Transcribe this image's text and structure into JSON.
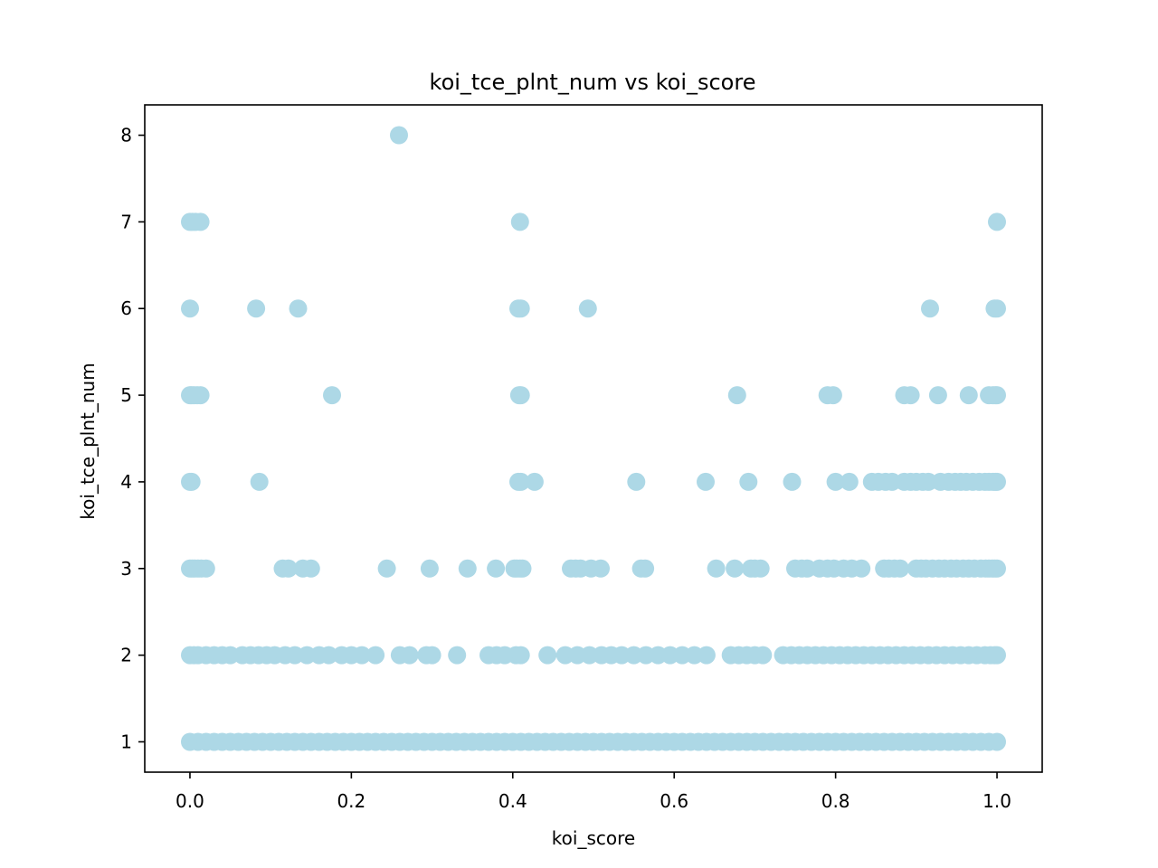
{
  "chart_data": {
    "type": "scatter",
    "title": "koi_tce_plnt_num vs koi_score",
    "xlabel": "koi_score",
    "ylabel": "koi_tce_plnt_num",
    "xlim": [
      -0.056,
      1.056
    ],
    "ylim": [
      0.65,
      8.35
    ],
    "xticks": [
      "0.0",
      "0.2",
      "0.4",
      "0.6",
      "0.8",
      "1.0"
    ],
    "yticks": [
      "1",
      "2",
      "3",
      "4",
      "5",
      "6",
      "7",
      "8"
    ],
    "grid": false,
    "legend": "none",
    "marker_color": "#add8e6",
    "series": [
      {
        "points": [
          [
            0.259,
            8
          ],
          [
            0.0,
            7
          ],
          [
            0.003,
            7
          ],
          [
            0.007,
            7
          ],
          [
            0.013,
            7
          ],
          [
            0.409,
            7
          ],
          [
            1.0,
            7
          ],
          [
            0.0,
            6
          ],
          [
            0.082,
            6
          ],
          [
            0.134,
            6
          ],
          [
            0.407,
            6
          ],
          [
            0.41,
            6
          ],
          [
            0.493,
            6
          ],
          [
            0.917,
            6
          ],
          [
            0.997,
            6
          ],
          [
            1.0,
            6
          ],
          [
            0.0,
            5
          ],
          [
            0.002,
            5
          ],
          [
            0.005,
            5
          ],
          [
            0.009,
            5
          ],
          [
            0.013,
            5
          ],
          [
            0.176,
            5
          ],
          [
            0.408,
            5
          ],
          [
            0.41,
            5
          ],
          [
            0.678,
            5
          ],
          [
            0.79,
            5
          ],
          [
            0.797,
            5
          ],
          [
            0.885,
            5
          ],
          [
            0.893,
            5
          ],
          [
            0.927,
            5
          ],
          [
            0.965,
            5
          ],
          [
            0.99,
            5
          ],
          [
            0.995,
            5
          ],
          [
            0.998,
            5
          ],
          [
            1.0,
            5
          ],
          [
            0.0,
            4
          ],
          [
            0.002,
            4
          ],
          [
            0.086,
            4
          ],
          [
            0.407,
            4
          ],
          [
            0.41,
            4
          ],
          [
            0.427,
            4
          ],
          [
            0.553,
            4
          ],
          [
            0.639,
            4
          ],
          [
            0.692,
            4
          ],
          [
            0.746,
            4
          ],
          [
            0.8,
            4
          ],
          [
            0.817,
            4
          ],
          [
            0.845,
            4
          ],
          [
            0.853,
            4
          ],
          [
            0.862,
            4
          ],
          [
            0.87,
            4
          ],
          [
            0.885,
            4
          ],
          [
            0.893,
            4
          ],
          [
            0.9,
            4
          ],
          [
            0.908,
            4
          ],
          [
            0.915,
            4
          ],
          [
            0.93,
            4
          ],
          [
            0.94,
            4
          ],
          [
            0.948,
            4
          ],
          [
            0.955,
            4
          ],
          [
            0.962,
            4
          ],
          [
            0.97,
            4
          ],
          [
            0.978,
            4
          ],
          [
            0.985,
            4
          ],
          [
            0.99,
            4
          ],
          [
            0.995,
            4
          ],
          [
            0.998,
            4
          ],
          [
            1.0,
            4
          ],
          [
            0.0,
            3
          ],
          [
            0.003,
            3
          ],
          [
            0.006,
            3
          ],
          [
            0.01,
            3
          ],
          [
            0.014,
            3
          ],
          [
            0.02,
            3
          ],
          [
            0.115,
            3
          ],
          [
            0.122,
            3
          ],
          [
            0.14,
            3
          ],
          [
            0.15,
            3
          ],
          [
            0.244,
            3
          ],
          [
            0.297,
            3
          ],
          [
            0.344,
            3
          ],
          [
            0.379,
            3
          ],
          [
            0.402,
            3
          ],
          [
            0.405,
            3
          ],
          [
            0.409,
            3
          ],
          [
            0.412,
            3
          ],
          [
            0.472,
            3
          ],
          [
            0.478,
            3
          ],
          [
            0.484,
            3
          ],
          [
            0.497,
            3
          ],
          [
            0.509,
            3
          ],
          [
            0.559,
            3
          ],
          [
            0.564,
            3
          ],
          [
            0.652,
            3
          ],
          [
            0.675,
            3
          ],
          [
            0.695,
            3
          ],
          [
            0.7,
            3
          ],
          [
            0.707,
            3
          ],
          [
            0.75,
            3
          ],
          [
            0.758,
            3
          ],
          [
            0.765,
            3
          ],
          [
            0.78,
            3
          ],
          [
            0.79,
            3
          ],
          [
            0.798,
            3
          ],
          [
            0.81,
            3
          ],
          [
            0.82,
            3
          ],
          [
            0.832,
            3
          ],
          [
            0.86,
            3
          ],
          [
            0.866,
            3
          ],
          [
            0.873,
            3
          ],
          [
            0.88,
            3
          ],
          [
            0.9,
            3
          ],
          [
            0.906,
            3
          ],
          [
            0.912,
            3
          ],
          [
            0.92,
            3
          ],
          [
            0.928,
            3
          ],
          [
            0.935,
            3
          ],
          [
            0.943,
            3
          ],
          [
            0.95,
            3
          ],
          [
            0.958,
            3
          ],
          [
            0.965,
            3
          ],
          [
            0.972,
            3
          ],
          [
            0.98,
            3
          ],
          [
            0.986,
            3
          ],
          [
            0.99,
            3
          ],
          [
            0.994,
            3
          ],
          [
            0.997,
            3
          ],
          [
            1.0,
            3
          ],
          [
            0.0,
            2
          ],
          [
            0.005,
            2
          ],
          [
            0.01,
            2
          ],
          [
            0.02,
            2
          ],
          [
            0.03,
            2
          ],
          [
            0.04,
            2
          ],
          [
            0.05,
            2
          ],
          [
            0.065,
            2
          ],
          [
            0.075,
            2
          ],
          [
            0.085,
            2
          ],
          [
            0.095,
            2
          ],
          [
            0.105,
            2
          ],
          [
            0.118,
            2
          ],
          [
            0.13,
            2
          ],
          [
            0.145,
            2
          ],
          [
            0.16,
            2
          ],
          [
            0.172,
            2
          ],
          [
            0.188,
            2
          ],
          [
            0.2,
            2
          ],
          [
            0.213,
            2
          ],
          [
            0.23,
            2
          ],
          [
            0.26,
            2
          ],
          [
            0.272,
            2
          ],
          [
            0.293,
            2
          ],
          [
            0.3,
            2
          ],
          [
            0.331,
            2
          ],
          [
            0.37,
            2
          ],
          [
            0.38,
            2
          ],
          [
            0.39,
            2
          ],
          [
            0.404,
            2
          ],
          [
            0.41,
            2
          ],
          [
            0.443,
            2
          ],
          [
            0.465,
            2
          ],
          [
            0.48,
            2
          ],
          [
            0.495,
            2
          ],
          [
            0.51,
            2
          ],
          [
            0.522,
            2
          ],
          [
            0.535,
            2
          ],
          [
            0.55,
            2
          ],
          [
            0.565,
            2
          ],
          [
            0.58,
            2
          ],
          [
            0.595,
            2
          ],
          [
            0.61,
            2
          ],
          [
            0.625,
            2
          ],
          [
            0.64,
            2
          ],
          [
            0.67,
            2
          ],
          [
            0.68,
            2
          ],
          [
            0.69,
            2
          ],
          [
            0.7,
            2
          ],
          [
            0.71,
            2
          ],
          [
            0.735,
            2
          ],
          [
            0.745,
            2
          ],
          [
            0.755,
            2
          ],
          [
            0.765,
            2
          ],
          [
            0.775,
            2
          ],
          [
            0.785,
            2
          ],
          [
            0.795,
            2
          ],
          [
            0.805,
            2
          ],
          [
            0.815,
            2
          ],
          [
            0.825,
            2
          ],
          [
            0.835,
            2
          ],
          [
            0.845,
            2
          ],
          [
            0.855,
            2
          ],
          [
            0.865,
            2
          ],
          [
            0.875,
            2
          ],
          [
            0.885,
            2
          ],
          [
            0.895,
            2
          ],
          [
            0.905,
            2
          ],
          [
            0.915,
            2
          ],
          [
            0.925,
            2
          ],
          [
            0.935,
            2
          ],
          [
            0.945,
            2
          ],
          [
            0.955,
            2
          ],
          [
            0.965,
            2
          ],
          [
            0.975,
            2
          ],
          [
            0.985,
            2
          ],
          [
            0.992,
            2
          ],
          [
            0.997,
            2
          ],
          [
            1.0,
            2
          ],
          [
            0.0,
            1
          ],
          [
            0.01,
            1
          ],
          [
            0.02,
            1
          ],
          [
            0.03,
            1
          ],
          [
            0.04,
            1
          ],
          [
            0.05,
            1
          ],
          [
            0.06,
            1
          ],
          [
            0.07,
            1
          ],
          [
            0.08,
            1
          ],
          [
            0.09,
            1
          ],
          [
            0.1,
            1
          ],
          [
            0.11,
            1
          ],
          [
            0.12,
            1
          ],
          [
            0.13,
            1
          ],
          [
            0.14,
            1
          ],
          [
            0.15,
            1
          ],
          [
            0.16,
            1
          ],
          [
            0.17,
            1
          ],
          [
            0.18,
            1
          ],
          [
            0.19,
            1
          ],
          [
            0.2,
            1
          ],
          [
            0.21,
            1
          ],
          [
            0.22,
            1
          ],
          [
            0.23,
            1
          ],
          [
            0.24,
            1
          ],
          [
            0.25,
            1
          ],
          [
            0.26,
            1
          ],
          [
            0.27,
            1
          ],
          [
            0.28,
            1
          ],
          [
            0.29,
            1
          ],
          [
            0.3,
            1
          ],
          [
            0.31,
            1
          ],
          [
            0.32,
            1
          ],
          [
            0.33,
            1
          ],
          [
            0.34,
            1
          ],
          [
            0.35,
            1
          ],
          [
            0.36,
            1
          ],
          [
            0.37,
            1
          ],
          [
            0.38,
            1
          ],
          [
            0.39,
            1
          ],
          [
            0.4,
            1
          ],
          [
            0.41,
            1
          ],
          [
            0.42,
            1
          ],
          [
            0.43,
            1
          ],
          [
            0.44,
            1
          ],
          [
            0.45,
            1
          ],
          [
            0.46,
            1
          ],
          [
            0.47,
            1
          ],
          [
            0.48,
            1
          ],
          [
            0.49,
            1
          ],
          [
            0.5,
            1
          ],
          [
            0.51,
            1
          ],
          [
            0.52,
            1
          ],
          [
            0.53,
            1
          ],
          [
            0.54,
            1
          ],
          [
            0.55,
            1
          ],
          [
            0.56,
            1
          ],
          [
            0.57,
            1
          ],
          [
            0.58,
            1
          ],
          [
            0.59,
            1
          ],
          [
            0.6,
            1
          ],
          [
            0.61,
            1
          ],
          [
            0.62,
            1
          ],
          [
            0.63,
            1
          ],
          [
            0.64,
            1
          ],
          [
            0.65,
            1
          ],
          [
            0.66,
            1
          ],
          [
            0.67,
            1
          ],
          [
            0.68,
            1
          ],
          [
            0.69,
            1
          ],
          [
            0.7,
            1
          ],
          [
            0.71,
            1
          ],
          [
            0.72,
            1
          ],
          [
            0.73,
            1
          ],
          [
            0.74,
            1
          ],
          [
            0.75,
            1
          ],
          [
            0.76,
            1
          ],
          [
            0.77,
            1
          ],
          [
            0.78,
            1
          ],
          [
            0.79,
            1
          ],
          [
            0.8,
            1
          ],
          [
            0.81,
            1
          ],
          [
            0.82,
            1
          ],
          [
            0.83,
            1
          ],
          [
            0.84,
            1
          ],
          [
            0.85,
            1
          ],
          [
            0.86,
            1
          ],
          [
            0.87,
            1
          ],
          [
            0.88,
            1
          ],
          [
            0.89,
            1
          ],
          [
            0.9,
            1
          ],
          [
            0.91,
            1
          ],
          [
            0.92,
            1
          ],
          [
            0.93,
            1
          ],
          [
            0.94,
            1
          ],
          [
            0.95,
            1
          ],
          [
            0.96,
            1
          ],
          [
            0.97,
            1
          ],
          [
            0.98,
            1
          ],
          [
            0.99,
            1
          ],
          [
            1.0,
            1
          ]
        ]
      }
    ]
  }
}
